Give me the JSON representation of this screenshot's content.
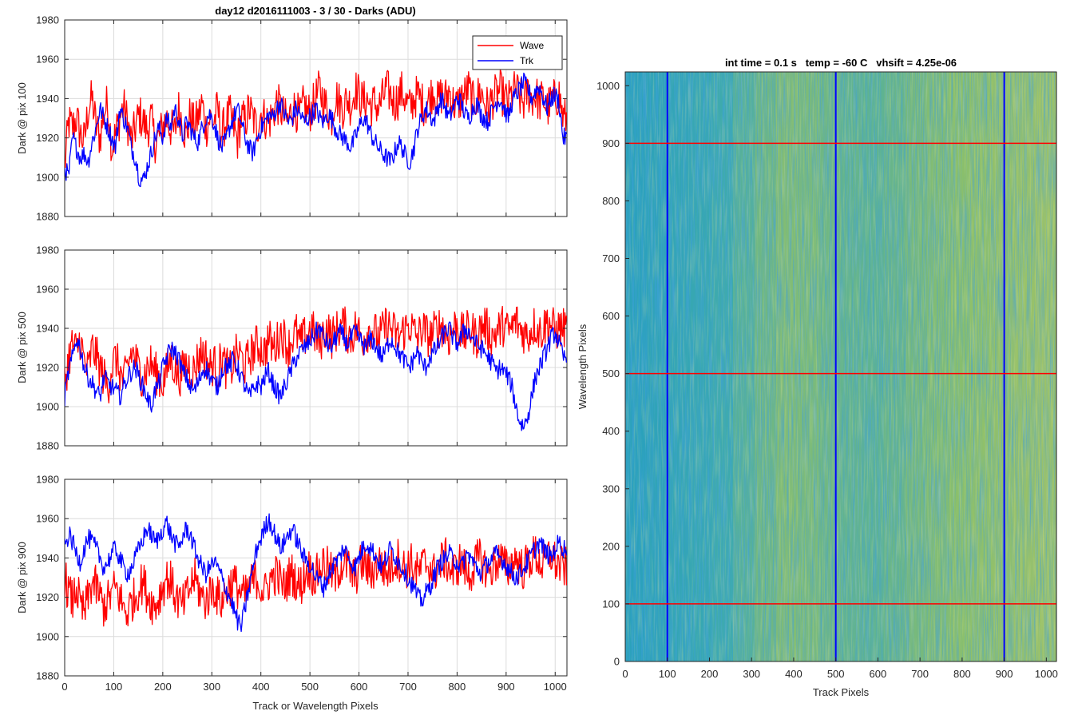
{
  "chart_data": [
    {
      "type": "line",
      "title": "day12 d2016111003 - 3 / 30 - Darks (ADU)",
      "xlabel": "",
      "ylabel": "Dark @ pix 100",
      "xlim": [
        0,
        1024
      ],
      "ylim": [
        1880,
        1980
      ],
      "xticks": [
        0,
        100,
        200,
        300,
        400,
        500,
        600,
        700,
        800,
        900,
        1000
      ],
      "yticks": [
        1880,
        1900,
        1920,
        1940,
        1960,
        1980
      ],
      "grid": true,
      "legend": {
        "position": "top-right",
        "entries": [
          "Wave",
          "Trk"
        ]
      },
      "series": [
        {
          "name": "Wave",
          "color": "#ff0000",
          "x_step": 8,
          "values": [
            1905,
            1928,
            1925,
            1930,
            1922,
            1918,
            1935,
            1940,
            1926,
            1920,
            1933,
            1938,
            1915,
            1922,
            1930,
            1936,
            1928,
            1918,
            1925,
            1932,
            1928,
            1924,
            1930,
            1918,
            1920,
            1926,
            1930,
            1925,
            1922,
            1935,
            1928,
            1920,
            1932,
            1926,
            1930,
            1938,
            1925,
            1930,
            1928,
            1935,
            1922,
            1928,
            1932,
            1926,
            1918,
            1930,
            1928,
            1935,
            1930,
            1925,
            1933,
            1930,
            1928,
            1932,
            1938,
            1935,
            1930,
            1928,
            1936,
            1934,
            1930,
            1938,
            1932,
            1935,
            1940,
            1945,
            1938,
            1935,
            1930,
            1942,
            1938,
            1935,
            1940,
            1936,
            1945,
            1942,
            1938,
            1940,
            1936,
            1938,
            1935,
            1940,
            1945,
            1942,
            1938,
            1940,
            1944,
            1938,
            1935,
            1940,
            1942,
            1938,
            1936,
            1940,
            1945,
            1938,
            1942,
            1940,
            1944,
            1938,
            1936,
            1940,
            1942,
            1945,
            1938,
            1940,
            1944,
            1938,
            1935,
            1940,
            1942,
            1944,
            1940,
            1938,
            1942,
            1945,
            1940,
            1938,
            1944,
            1940,
            1942,
            1938,
            1940,
            1935,
            1938,
            1940,
            1942,
            1930
          ]
        },
        {
          "name": "Trk",
          "color": "#0000ff",
          "x_step": 8,
          "values": [
            1905,
            1900,
            1920,
            1915,
            1910,
            1912,
            1908,
            1918,
            1925,
            1935,
            1930,
            1925,
            1920,
            1915,
            1935,
            1930,
            1925,
            1915,
            1910,
            1900,
            1898,
            1905,
            1912,
            1920,
            1925,
            1920,
            1930,
            1925,
            1935,
            1930,
            1920,
            1928,
            1925,
            1920,
            1918,
            1925,
            1930,
            1932,
            1928,
            1920,
            1915,
            1918,
            1925,
            1930,
            1935,
            1928,
            1920,
            1915,
            1912,
            1920,
            1925,
            1928,
            1932,
            1930,
            1935,
            1938,
            1932,
            1928,
            1930,
            1935,
            1932,
            1928,
            1930,
            1932,
            1935,
            1930,
            1928,
            1932,
            1930,
            1925,
            1922,
            1920,
            1918,
            1915,
            1920,
            1925,
            1930,
            1928,
            1922,
            1918,
            1915,
            1912,
            1910,
            1908,
            1912,
            1918,
            1915,
            1910,
            1908,
            1915,
            1925,
            1930,
            1935,
            1932,
            1928,
            1935,
            1940,
            1935,
            1930,
            1935,
            1940,
            1938,
            1932,
            1930,
            1935,
            1938,
            1932,
            1930,
            1928,
            1935,
            1938,
            1940,
            1935,
            1930,
            1938,
            1942,
            1945,
            1948,
            1945,
            1940,
            1944,
            1946,
            1940,
            1935,
            1940,
            1942,
            1938,
            1920
          ]
        }
      ]
    },
    {
      "type": "line",
      "title": "",
      "xlabel": "",
      "ylabel": "Dark @ pix 500",
      "xlim": [
        0,
        1024
      ],
      "ylim": [
        1880,
        1980
      ],
      "xticks": [
        0,
        100,
        200,
        300,
        400,
        500,
        600,
        700,
        800,
        900,
        1000
      ],
      "yticks": [
        1880,
        1900,
        1920,
        1940,
        1960,
        1980
      ],
      "grid": true,
      "series": [
        {
          "name": "Wave",
          "color": "#ff0000",
          "x_step": 8,
          "values": [
            1912,
            1925,
            1932,
            1928,
            1935,
            1922,
            1918,
            1930,
            1926,
            1920,
            1915,
            1910,
            1920,
            1925,
            1918,
            1912,
            1920,
            1928,
            1925,
            1918,
            1915,
            1920,
            1922,
            1918,
            1915,
            1912,
            1918,
            1925,
            1920,
            1915,
            1918,
            1922,
            1920,
            1918,
            1925,
            1928,
            1925,
            1920,
            1922,
            1918,
            1925,
            1920,
            1918,
            1922,
            1928,
            1925,
            1920,
            1926,
            1928,
            1932,
            1930,
            1928,
            1935,
            1930,
            1932,
            1938,
            1935,
            1930,
            1935,
            1938,
            1932,
            1935,
            1938,
            1940,
            1935,
            1932,
            1938,
            1940,
            1935,
            1938,
            1940,
            1942,
            1938,
            1935,
            1940,
            1938,
            1935,
            1938,
            1940,
            1938,
            1935,
            1938,
            1942,
            1940,
            1938,
            1935,
            1938,
            1940,
            1942,
            1938,
            1935,
            1940,
            1938,
            1935,
            1938,
            1940,
            1942,
            1938,
            1935,
            1940,
            1942,
            1938,
            1936,
            1940,
            1938,
            1935,
            1940,
            1942,
            1938,
            1936,
            1938,
            1940,
            1942,
            1938,
            1940,
            1944,
            1940,
            1938,
            1936,
            1940,
            1942,
            1938,
            1940,
            1944,
            1942,
            1938,
            1940,
            1940
          ]
        },
        {
          "name": "Trk",
          "color": "#0000ff",
          "x_step": 8,
          "values": [
            1905,
            1918,
            1925,
            1935,
            1930,
            1920,
            1915,
            1912,
            1908,
            1905,
            1915,
            1912,
            1910,
            1908,
            1905,
            1910,
            1915,
            1918,
            1920,
            1915,
            1910,
            1905,
            1900,
            1908,
            1912,
            1920,
            1925,
            1930,
            1928,
            1925,
            1918,
            1915,
            1910,
            1908,
            1912,
            1918,
            1920,
            1915,
            1912,
            1910,
            1918,
            1922,
            1920,
            1925,
            1920,
            1915,
            1910,
            1905,
            1908,
            1912,
            1910,
            1915,
            1918,
            1912,
            1908,
            1905,
            1910,
            1915,
            1920,
            1925,
            1928,
            1930,
            1932,
            1935,
            1938,
            1940,
            1935,
            1932,
            1930,
            1935,
            1938,
            1936,
            1932,
            1935,
            1938,
            1935,
            1932,
            1930,
            1935,
            1932,
            1928,
            1925,
            1930,
            1935,
            1932,
            1928,
            1925,
            1922,
            1920,
            1925,
            1928,
            1922,
            1920,
            1925,
            1928,
            1930,
            1935,
            1938,
            1940,
            1935,
            1932,
            1935,
            1940,
            1938,
            1935,
            1932,
            1930,
            1928,
            1925,
            1922,
            1918,
            1920,
            1918,
            1915,
            1910,
            1900,
            1892,
            1890,
            1895,
            1905,
            1915,
            1920,
            1925,
            1930,
            1935,
            1938,
            1932,
            1925
          ]
        }
      ]
    },
    {
      "type": "line",
      "title": "",
      "xlabel": "Track or Wavelength Pixels",
      "ylabel": "Dark @ pix 900",
      "xlim": [
        0,
        1024
      ],
      "ylim": [
        1880,
        1980
      ],
      "xticks": [
        0,
        100,
        200,
        300,
        400,
        500,
        600,
        700,
        800,
        900,
        1000
      ],
      "yticks": [
        1880,
        1900,
        1920,
        1940,
        1960,
        1980
      ],
      "grid": true,
      "series": [
        {
          "name": "Wave",
          "color": "#ff0000",
          "x_step": 8,
          "values": [
            1930,
            1922,
            1918,
            1925,
            1915,
            1912,
            1920,
            1928,
            1925,
            1920,
            1915,
            1918,
            1922,
            1925,
            1920,
            1915,
            1912,
            1918,
            1920,
            1925,
            1928,
            1922,
            1918,
            1915,
            1920,
            1925,
            1930,
            1928,
            1922,
            1918,
            1915,
            1920,
            1925,
            1930,
            1925,
            1920,
            1918,
            1922,
            1925,
            1920,
            1918,
            1922,
            1926,
            1928,
            1925,
            1922,
            1920,
            1925,
            1928,
            1930,
            1925,
            1922,
            1928,
            1930,
            1932,
            1928,
            1925,
            1930,
            1932,
            1928,
            1925,
            1930,
            1935,
            1932,
            1930,
            1935,
            1938,
            1935,
            1932,
            1930,
            1935,
            1938,
            1936,
            1932,
            1930,
            1935,
            1938,
            1935,
            1932,
            1935,
            1938,
            1936,
            1932,
            1935,
            1938,
            1940,
            1936,
            1934,
            1938,
            1935,
            1932,
            1935,
            1938,
            1936,
            1932,
            1935,
            1938,
            1940,
            1935,
            1932,
            1936,
            1938,
            1935,
            1930,
            1935,
            1938,
            1940,
            1936,
            1932,
            1935,
            1938,
            1940,
            1936,
            1934,
            1938,
            1940,
            1936,
            1934,
            1938,
            1940,
            1942,
            1938,
            1936,
            1940,
            1942,
            1938,
            1936,
            1935
          ]
        },
        {
          "name": "Trk",
          "color": "#0000ff",
          "x_step": 8,
          "values": [
            1945,
            1952,
            1948,
            1942,
            1938,
            1945,
            1950,
            1948,
            1945,
            1940,
            1935,
            1938,
            1942,
            1945,
            1940,
            1935,
            1932,
            1935,
            1940,
            1945,
            1950,
            1955,
            1952,
            1948,
            1950,
            1955,
            1958,
            1952,
            1948,
            1945,
            1950,
            1955,
            1952,
            1945,
            1940,
            1935,
            1932,
            1935,
            1938,
            1935,
            1930,
            1925,
            1920,
            1915,
            1908,
            1905,
            1915,
            1925,
            1935,
            1945,
            1950,
            1955,
            1960,
            1955,
            1950,
            1945,
            1948,
            1952,
            1955,
            1950,
            1945,
            1940,
            1938,
            1935,
            1930,
            1928,
            1925,
            1930,
            1935,
            1938,
            1940,
            1945,
            1942,
            1938,
            1935,
            1940,
            1945,
            1948,
            1945,
            1942,
            1938,
            1935,
            1940,
            1945,
            1942,
            1938,
            1935,
            1932,
            1928,
            1925,
            1920,
            1918,
            1922,
            1925,
            1930,
            1935,
            1938,
            1940,
            1942,
            1940,
            1938,
            1935,
            1940,
            1942,
            1938,
            1935,
            1932,
            1935,
            1938,
            1940,
            1942,
            1940,
            1938,
            1935,
            1932,
            1930,
            1932,
            1935,
            1938,
            1942,
            1945,
            1948,
            1945,
            1942,
            1940,
            1945,
            1948,
            1945
          ]
        }
      ]
    },
    {
      "type": "heatmap",
      "title": "int time = 0.1 s   temp = -60 C   vhsift = 4.25e-06",
      "xlabel": "Track Pixels",
      "ylabel": "Wavelength Pixels",
      "xlim": [
        0,
        1024
      ],
      "ylim": [
        0,
        1024
      ],
      "xticks": [
        0,
        100,
        200,
        300,
        400,
        500,
        600,
        700,
        800,
        900,
        1000
      ],
      "yticks": [
        0,
        100,
        200,
        300,
        400,
        500,
        600,
        700,
        800,
        900,
        1000
      ],
      "colormap": [
        "#1a98c8",
        "#3aa9b0",
        "#8cbf6a",
        "#a8c468"
      ],
      "column_intensity": [
        0.18,
        0.22,
        0.26,
        0.3,
        0.35,
        0.45,
        0.55,
        0.62,
        0.6,
        0.55,
        0.5,
        0.48,
        0.52,
        0.58,
        0.62,
        0.66,
        0.7,
        0.74,
        0.8,
        0.85
      ],
      "vertical_markers": {
        "color": "#0000ff",
        "x": [
          100,
          500,
          900
        ]
      },
      "horizontal_markers": {
        "color": "#ff0000",
        "y": [
          100,
          500,
          900
        ]
      }
    }
  ]
}
